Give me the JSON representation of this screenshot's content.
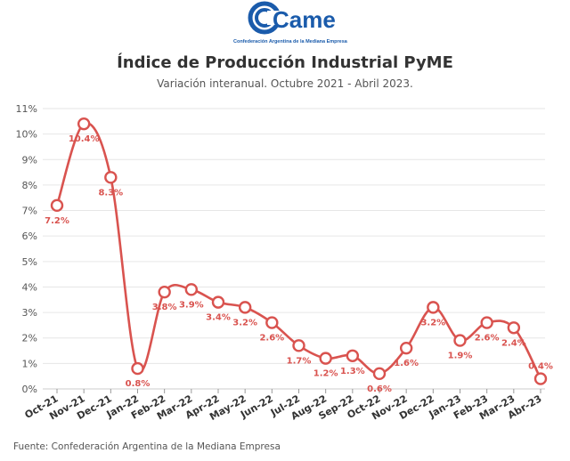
{
  "logo": {
    "text": "Came",
    "caption": "Confederación Argentina de la Mediana Empresa"
  },
  "title": "Índice de Producción Industrial PyME",
  "subtitle": "Variación interanual. Octubre 2021 - Abril 2023.",
  "source": "Fuente: Confederación Argentina de la Mediana Empresa",
  "colors": {
    "line": "#d9534f",
    "label": "#d9534f",
    "grid": "#e6e6e6",
    "axis": "#555555"
  },
  "chart_data": {
    "type": "line",
    "title": "Índice de Producción Industrial PyME",
    "subtitle": "Variación interanual. Octubre 2021 - Abril 2023.",
    "xlabel": "",
    "ylabel": "",
    "categories": [
      "Oct-21",
      "Nov-21",
      "Dec-21",
      "Jan-22",
      "Feb-22",
      "Mar-22",
      "Apr-22",
      "May-22",
      "Jun-22",
      "Jul-22",
      "Aug-22",
      "Sep-22",
      "Oct-22",
      "Nov-22",
      "Dec-22",
      "Jan-23",
      "Feb-23",
      "Mar-23",
      "Abr-23"
    ],
    "series": [
      {
        "values": [
          7.2,
          10.4,
          8.3,
          0.8,
          3.8,
          3.9,
          3.4,
          3.2,
          2.6,
          1.7,
          1.2,
          1.3,
          0.6,
          1.6,
          3.2,
          1.9,
          2.6,
          2.4,
          0.4
        ],
        "labels": [
          "7.2%",
          "10.4%",
          "8.3%",
          "0.8%",
          "3.8%",
          "3.9%",
          "3.4%",
          "3.2%",
          "2.6%",
          "1.7%",
          "1.2%",
          "1.3%",
          "0.6%",
          "1.6%",
          "3.2%",
          "1.9%",
          "2.6%",
          "2.4%",
          "0.4%"
        ]
      }
    ],
    "ylim": [
      0,
      11
    ],
    "yticks": [
      "0%",
      "1%",
      "2%",
      "3%",
      "4%",
      "5%",
      "6%",
      "7%",
      "8%",
      "9%",
      "10%",
      "11%"
    ],
    "grid": true,
    "curve": "smooth",
    "legend": "none"
  }
}
